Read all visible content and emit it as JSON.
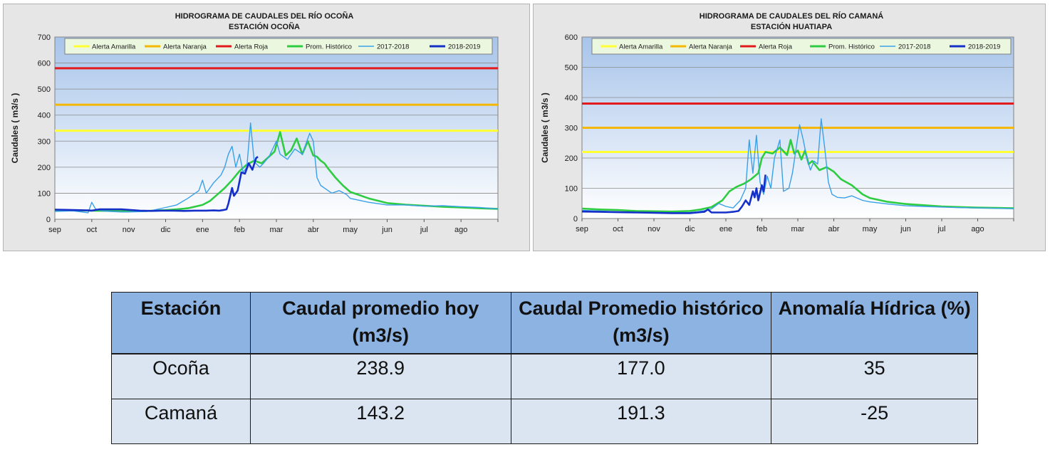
{
  "chart_data": [
    {
      "type": "line",
      "title": "HIDROGRAMA DE CAUDALES DEL RÍO OCOÑA",
      "subtitle": "ESTACIÓN OCOÑA",
      "ylabel": "Caudales ( m3/s )",
      "xlabel": "",
      "ylim": [
        0,
        700
      ],
      "yticks": [
        0,
        100,
        200,
        300,
        400,
        500,
        600,
        700
      ],
      "x_tick_labels": [
        "sep",
        "oct",
        "nov",
        "dic",
        "ene",
        "feb",
        "mar",
        "abr",
        "may",
        "jun",
        "jul",
        "ago"
      ],
      "x_unit": "month index from start of sep (0-12)",
      "grid": true,
      "legend_position": "top",
      "thresholds": [
        {
          "name": "Alerta Amarilla",
          "value": 340,
          "color": "#ffff33"
        },
        {
          "name": "Alerta Naranja",
          "value": 440,
          "color": "#f5b800"
        },
        {
          "name": "Alerta Roja",
          "value": 580,
          "color": "#e31a1c"
        }
      ],
      "series": [
        {
          "name": "Prom. Histórico",
          "color": "#2ecc40",
          "x": [
            0,
            0.5,
            1,
            1.5,
            2,
            2.5,
            3,
            3.3,
            3.6,
            4,
            4.2,
            4.4,
            4.6,
            4.8,
            5,
            5.2,
            5.4,
            5.6,
            5.8,
            5.95,
            6.1,
            6.25,
            6.4,
            6.55,
            6.7,
            6.85,
            7,
            7.1,
            7.2,
            7.3,
            7.4,
            7.6,
            7.8,
            8,
            8.5,
            9,
            9.5,
            10,
            10.5,
            11,
            11.5,
            12
          ],
          "y": [
            35,
            34,
            33,
            32,
            31,
            32,
            35,
            38,
            42,
            55,
            70,
            95,
            120,
            150,
            185,
            210,
            225,
            215,
            240,
            260,
            335,
            245,
            265,
            310,
            250,
            300,
            245,
            240,
            225,
            215,
            195,
            160,
            130,
            105,
            80,
            62,
            56,
            52,
            48,
            45,
            42,
            40
          ]
        },
        {
          "name": "2017-2018",
          "color": "#3aa0e8",
          "x": [
            0,
            0.5,
            0.9,
            1,
            1.1,
            1.3,
            1.5,
            1.8,
            2,
            2.5,
            3,
            3.3,
            3.6,
            3.9,
            4,
            4.1,
            4.3,
            4.5,
            4.6,
            4.7,
            4.8,
            4.9,
            5,
            5.1,
            5.2,
            5.3,
            5.4,
            5.55,
            5.65,
            5.8,
            6,
            6.1,
            6.3,
            6.5,
            6.7,
            6.9,
            7,
            7.1,
            7.2,
            7.35,
            7.5,
            7.7,
            7.9,
            8,
            8.5,
            9,
            9.5,
            10,
            10.5,
            11,
            11.5,
            12
          ],
          "y": [
            30,
            32,
            25,
            65,
            40,
            32,
            30,
            28,
            28,
            30,
            45,
            55,
            80,
            110,
            150,
            100,
            140,
            170,
            200,
            250,
            280,
            200,
            250,
            180,
            200,
            370,
            220,
            200,
            215,
            240,
            300,
            250,
            230,
            270,
            250,
            330,
            300,
            160,
            130,
            115,
            100,
            110,
            95,
            80,
            65,
            55,
            55,
            50,
            52,
            48,
            45,
            40
          ]
        },
        {
          "name": "2018-2019",
          "color": "#1530c8",
          "x": [
            0,
            0.3,
            0.6,
            0.9,
            1,
            1.2,
            1.5,
            1.8,
            2,
            2.3,
            2.6,
            2.9,
            3.2,
            3.5,
            3.8,
            4.1,
            4.3,
            4.45,
            4.55,
            4.65,
            4.7,
            4.8,
            4.85,
            4.95,
            5.05,
            5.15,
            5.25,
            5.35,
            5.45,
            5.5
          ],
          "y": [
            37,
            36,
            35,
            34,
            33,
            38,
            38,
            38,
            36,
            33,
            32,
            33,
            33,
            32,
            33,
            33,
            34,
            33,
            35,
            38,
            60,
            120,
            90,
            110,
            180,
            175,
            215,
            190,
            235,
            240
          ]
        }
      ]
    },
    {
      "type": "line",
      "title": "HIDROGRAMA DE CAUDALES DEL RÍO CAMANÁ",
      "subtitle": "ESTACIÓN HUATIAPA",
      "ylabel": "Caudales ( m3/s )",
      "xlabel": "",
      "ylim": [
        0,
        600
      ],
      "yticks": [
        0,
        100,
        200,
        300,
        400,
        500,
        600
      ],
      "x_tick_labels": [
        "sep",
        "oct",
        "nov",
        "dic",
        "ene",
        "feb",
        "mar",
        "abr",
        "may",
        "jun",
        "jul",
        "ago"
      ],
      "x_unit": "month index from start of sep (0-12)",
      "grid": true,
      "legend_position": "top",
      "thresholds": [
        {
          "name": "Alerta Amarilla",
          "value": 220,
          "color": "#ffff33"
        },
        {
          "name": "Alerta Naranja",
          "value": 300,
          "color": "#f5b800"
        },
        {
          "name": "Alerta Roja",
          "value": 380,
          "color": "#e31a1c"
        }
      ],
      "series": [
        {
          "name": "Prom. Histórico",
          "color": "#2ecc40",
          "x": [
            0,
            0.5,
            1,
            1.5,
            2,
            2.5,
            3,
            3.3,
            3.6,
            3.9,
            4.1,
            4.3,
            4.5,
            4.7,
            4.9,
            5,
            5.1,
            5.3,
            5.5,
            5.7,
            5.8,
            5.9,
            6,
            6.1,
            6.2,
            6.3,
            6.4,
            6.6,
            6.8,
            7,
            7.2,
            7.5,
            7.8,
            8,
            8.5,
            9,
            9.5,
            10,
            10.5,
            11,
            11.5,
            12
          ],
          "y": [
            33,
            30,
            28,
            25,
            24,
            23,
            25,
            30,
            38,
            60,
            90,
            105,
            115,
            130,
            150,
            200,
            220,
            215,
            235,
            210,
            260,
            215,
            225,
            195,
            225,
            180,
            190,
            160,
            170,
            155,
            130,
            110,
            80,
            68,
            55,
            48,
            44,
            40,
            38,
            36,
            35,
            34
          ]
        },
        {
          "name": "2017-2018",
          "color": "#3aa0e8",
          "x": [
            0,
            0.5,
            1,
            1.5,
            2,
            2.5,
            3,
            3.2,
            3.4,
            3.6,
            3.8,
            4,
            4.2,
            4.4,
            4.55,
            4.65,
            4.75,
            4.85,
            4.95,
            5.05,
            5.15,
            5.25,
            5.35,
            5.5,
            5.6,
            5.75,
            5.85,
            5.95,
            6.05,
            6.15,
            6.25,
            6.35,
            6.45,
            6.55,
            6.65,
            6.75,
            6.85,
            6.95,
            7.1,
            7.3,
            7.5,
            7.8,
            8,
            8.5,
            9,
            9.5,
            10,
            10.5,
            11,
            11.5,
            12
          ],
          "y": [
            27,
            25,
            22,
            20,
            19,
            19,
            20,
            22,
            26,
            32,
            50,
            40,
            35,
            60,
            100,
            260,
            150,
            275,
            120,
            80,
            140,
            100,
            200,
            260,
            90,
            100,
            150,
            230,
            310,
            260,
            200,
            160,
            190,
            180,
            330,
            230,
            120,
            80,
            70,
            68,
            75,
            60,
            55,
            48,
            42,
            40,
            38,
            36,
            35,
            34,
            33
          ]
        },
        {
          "name": "2018-2019",
          "color": "#1530c8",
          "x": [
            0,
            0.5,
            1,
            1.5,
            2,
            2.5,
            3,
            3.2,
            3.4,
            3.5,
            3.6,
            3.8,
            4,
            4.2,
            4.35,
            4.45,
            4.55,
            4.65,
            4.75,
            4.8,
            4.85,
            4.9,
            5,
            5.05,
            5.1
          ],
          "y": [
            23,
            22,
            21,
            20,
            19,
            18,
            18,
            20,
            22,
            30,
            20,
            20,
            20,
            22,
            25,
            40,
            60,
            45,
            90,
            70,
            100,
            60,
            110,
            90,
            145
          ]
        }
      ]
    }
  ],
  "table": {
    "headers": [
      "Estación",
      "Caudal promedio hoy (m3/s)",
      "Caudal Promedio histórico (m3/s)",
      "Anomalía Hídrica (%)"
    ],
    "rows": [
      [
        "Ocoña",
        "238.9",
        "177.0",
        "35"
      ],
      [
        "Camaná",
        "143.2",
        "191.3",
        "-25"
      ]
    ]
  }
}
